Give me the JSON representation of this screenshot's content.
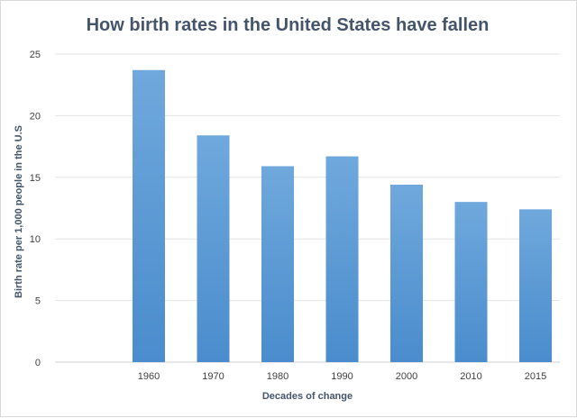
{
  "chart_data": {
    "type": "bar",
    "title": "How birth rates in the United States have fallen",
    "xlabel": "Decades of change",
    "ylabel": "Birth rate per 1,000 people in the U.S",
    "categories": [
      "1960",
      "1970",
      "1980",
      "1990",
      "2000",
      "2010",
      "2015"
    ],
    "values": [
      23.7,
      18.4,
      15.9,
      16.7,
      14.4,
      13.0,
      12.4
    ],
    "ylim": [
      0,
      25
    ],
    "yticks": [
      0,
      5,
      10,
      15,
      20,
      25
    ],
    "grid": true,
    "legend": "none",
    "bar_color": "#5b9bd5",
    "bar_color_top": "#6fa8dc",
    "gridline_color": "#e3e3e3",
    "title_color": "#44546a"
  }
}
